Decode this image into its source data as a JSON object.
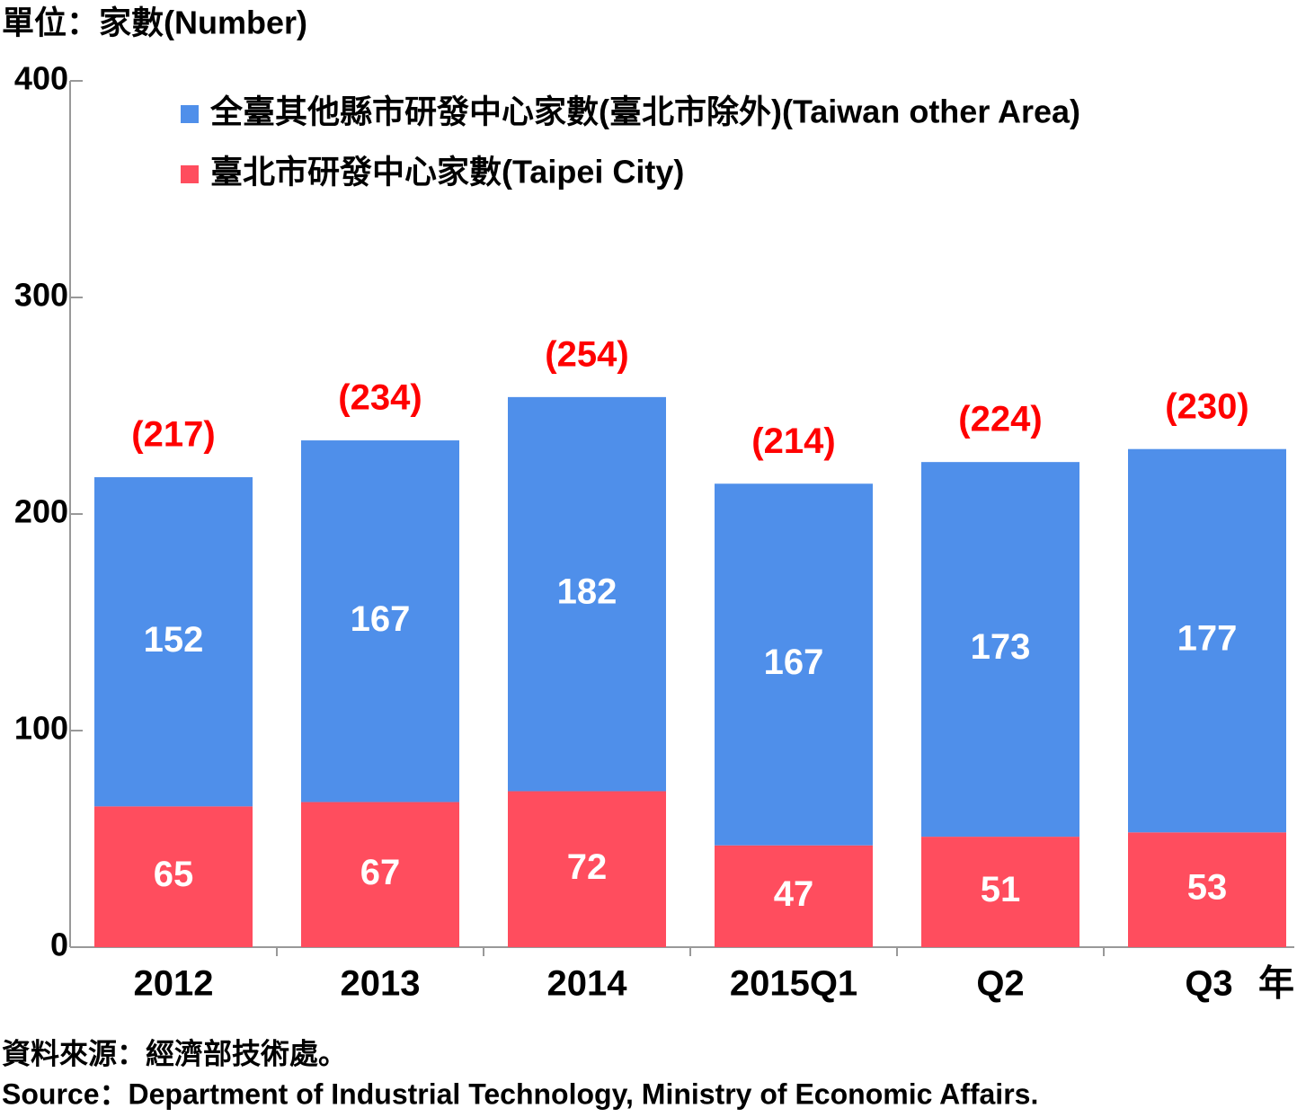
{
  "chart_data": {
    "type": "stacked_bar",
    "title": "單位：家數(Number)",
    "x_unit": "年",
    "categories": [
      "2012",
      "2013",
      "2014",
      "2015Q1",
      "Q2",
      "Q3"
    ],
    "series": [
      {
        "name": "臺北市研發中心家數(Taipei City)",
        "color": "#ff4d5e",
        "values": [
          65,
          67,
          72,
          47,
          51,
          53
        ]
      },
      {
        "name": "全臺其他縣市研發中心家數(臺北市除外)(Taiwan other Area)",
        "color": "#4f8fea",
        "values": [
          152,
          167,
          182,
          167,
          173,
          177
        ]
      }
    ],
    "totals": {
      "values": [
        217,
        234,
        254,
        214,
        224,
        230
      ],
      "value_labels": [
        "(217)",
        "(234)",
        "(254)",
        "(214)",
        "(224)",
        "(230)"
      ],
      "color": "#ff0000"
    },
    "ylim": [
      0,
      400
    ],
    "yticks": [
      0,
      100,
      200,
      300,
      400
    ],
    "source": [
      "資料來源：經濟部技術處。",
      "Source：Department of Industrial Technology, Ministry of Economic Affairs."
    ]
  }
}
